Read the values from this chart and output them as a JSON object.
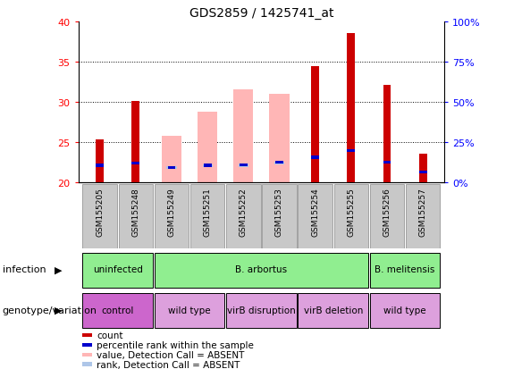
{
  "title": "GDS2859 / 1425741_at",
  "samples": [
    "GSM155205",
    "GSM155248",
    "GSM155249",
    "GSM155251",
    "GSM155252",
    "GSM155253",
    "GSM155254",
    "GSM155255",
    "GSM155256",
    "GSM155257"
  ],
  "red_bars": [
    25.3,
    30.1,
    null,
    null,
    null,
    null,
    34.4,
    38.5,
    32.1,
    23.5
  ],
  "pink_bars": [
    null,
    null,
    25.8,
    28.8,
    31.5,
    31.0,
    null,
    null,
    null,
    null
  ],
  "blue_segments": [
    22.1,
    22.4,
    21.8,
    22.1,
    22.2,
    22.5,
    23.1,
    23.9,
    22.5,
    21.3
  ],
  "light_blue_segments": [
    null,
    null,
    21.8,
    22.0,
    22.1,
    22.4,
    null,
    null,
    null,
    null
  ],
  "ylim": [
    20,
    40
  ],
  "yticks_left": [
    20,
    25,
    30,
    35,
    40
  ],
  "yticks_right": [
    0,
    25,
    50,
    75,
    100
  ],
  "yticklabels_right": [
    "0%",
    "25%",
    "50%",
    "75%",
    "100%"
  ],
  "infection_groups": [
    {
      "label": "uninfected",
      "cols": [
        0,
        1
      ],
      "color": "#90ee90"
    },
    {
      "label": "B. arbortus",
      "cols": [
        2,
        3,
        4,
        5,
        6,
        7
      ],
      "color": "#90ee90"
    },
    {
      "label": "B. melitensis",
      "cols": [
        8,
        9
      ],
      "color": "#90ee90"
    }
  ],
  "genotype_groups": [
    {
      "label": "control",
      "cols": [
        0,
        1
      ],
      "color": "#cc66cc"
    },
    {
      "label": "wild type",
      "cols": [
        2,
        3
      ],
      "color": "#dda0dd"
    },
    {
      "label": "virB disruption",
      "cols": [
        4,
        5
      ],
      "color": "#dda0dd"
    },
    {
      "label": "virB deletion",
      "cols": [
        6,
        7
      ],
      "color": "#dda0dd"
    },
    {
      "label": "wild type",
      "cols": [
        8,
        9
      ],
      "color": "#dda0dd"
    }
  ],
  "colors": {
    "red": "#cc0000",
    "pink": "#ffb6b6",
    "blue": "#0000cc",
    "light_blue": "#aec6e8",
    "green": "#90ee90",
    "gray": "#c8c8c8"
  },
  "legend_items": [
    {
      "color": "#cc0000",
      "label": "count"
    },
    {
      "color": "#0000cc",
      "label": "percentile rank within the sample"
    },
    {
      "color": "#ffb6b6",
      "label": "value, Detection Call = ABSENT"
    },
    {
      "color": "#aec6e8",
      "label": "rank, Detection Call = ABSENT"
    }
  ]
}
